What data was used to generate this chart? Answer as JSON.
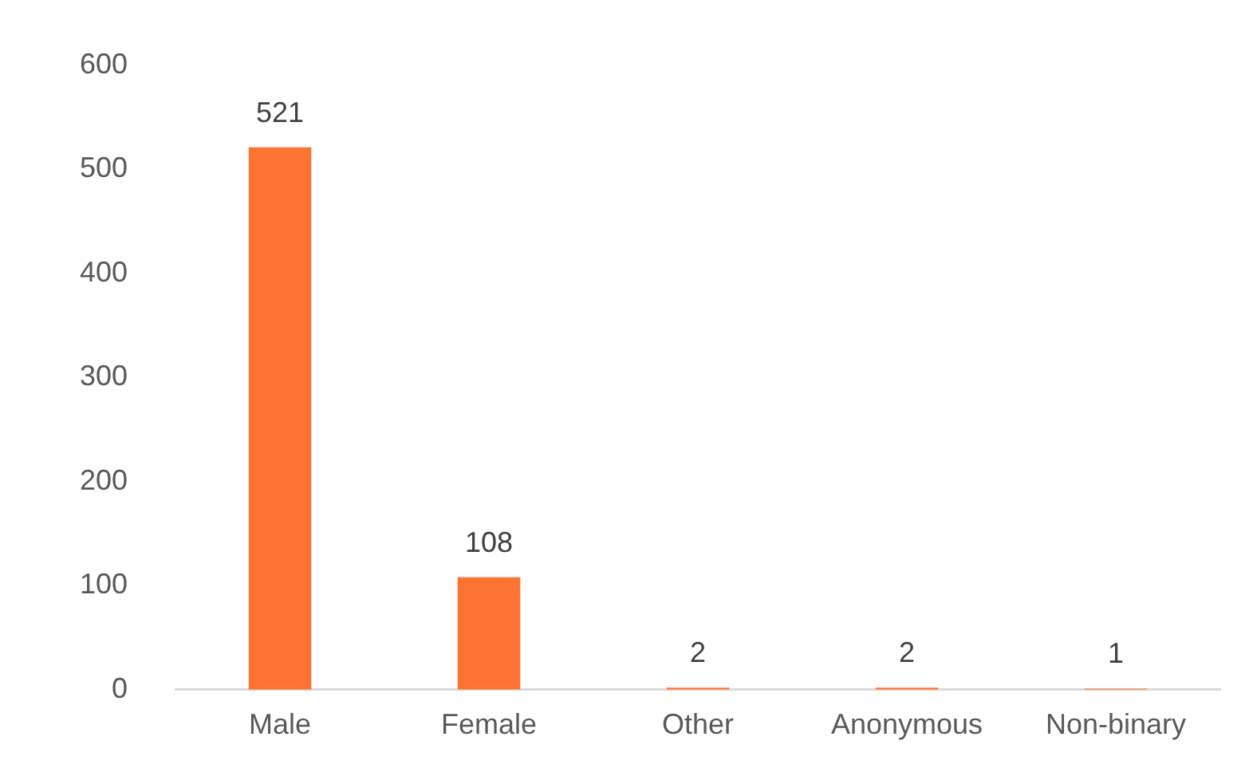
{
  "chart_data": {
    "type": "bar",
    "categories": [
      "Male",
      "Female",
      "Other",
      "Anonymous",
      "Non-binary"
    ],
    "values": [
      521,
      108,
      2,
      2,
      1
    ],
    "color": "#ff7433",
    "ylim": [
      0,
      600
    ],
    "yticks": [
      0,
      100,
      200,
      300,
      400,
      500,
      600
    ],
    "grid": false,
    "legend": false,
    "data_labels": true
  }
}
